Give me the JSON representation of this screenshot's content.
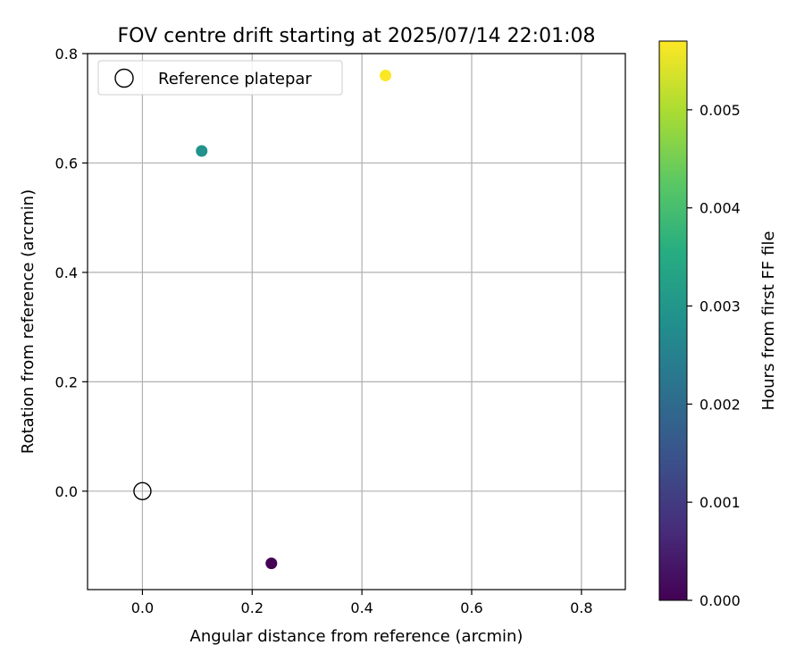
{
  "chart_data": {
    "type": "scatter",
    "title": "FOV centre drift starting at 2025/07/14 22:01:08",
    "xlabel": "Angular distance from reference (arcmin)",
    "ylabel": "Rotation from reference (arcmin)",
    "xlim": [
      -0.1,
      0.88
    ],
    "ylim": [
      -0.18,
      0.8
    ],
    "xticks": [
      0.0,
      0.2,
      0.4,
      0.6,
      0.8
    ],
    "xtick_labels": [
      "0.0",
      "0.2",
      "0.4",
      "0.6",
      "0.8"
    ],
    "yticks": [
      0.0,
      0.2,
      0.4,
      0.6,
      0.8
    ],
    "ytick_labels": [
      "0.0",
      "0.2",
      "0.4",
      "0.6",
      "0.8"
    ],
    "grid": true,
    "legend": {
      "placement": "top-left",
      "entries": [
        {
          "label": "Reference platepar",
          "marker": "open-circle"
        }
      ]
    },
    "reference_point": {
      "x": 0.0,
      "y": 0.0
    },
    "points": [
      {
        "x": 0.235,
        "y": -0.132,
        "hours": 0.0
      },
      {
        "x": 0.108,
        "y": 0.622,
        "hours": 0.0029
      },
      {
        "x": 0.443,
        "y": 0.76,
        "hours": 0.0057
      }
    ],
    "colorbar": {
      "label": "Hours from first FF file",
      "colormap": "viridis",
      "range": [
        0.0,
        0.0057
      ],
      "ticks": [
        0.0,
        0.001,
        0.002,
        0.003,
        0.004,
        0.005
      ],
      "tick_labels": [
        "0.000",
        "0.001",
        "0.002",
        "0.003",
        "0.004",
        "0.005"
      ]
    },
    "colors": {
      "grid": "#b0b0b0",
      "axes": "#000000",
      "reference_marker": "#000000"
    }
  }
}
